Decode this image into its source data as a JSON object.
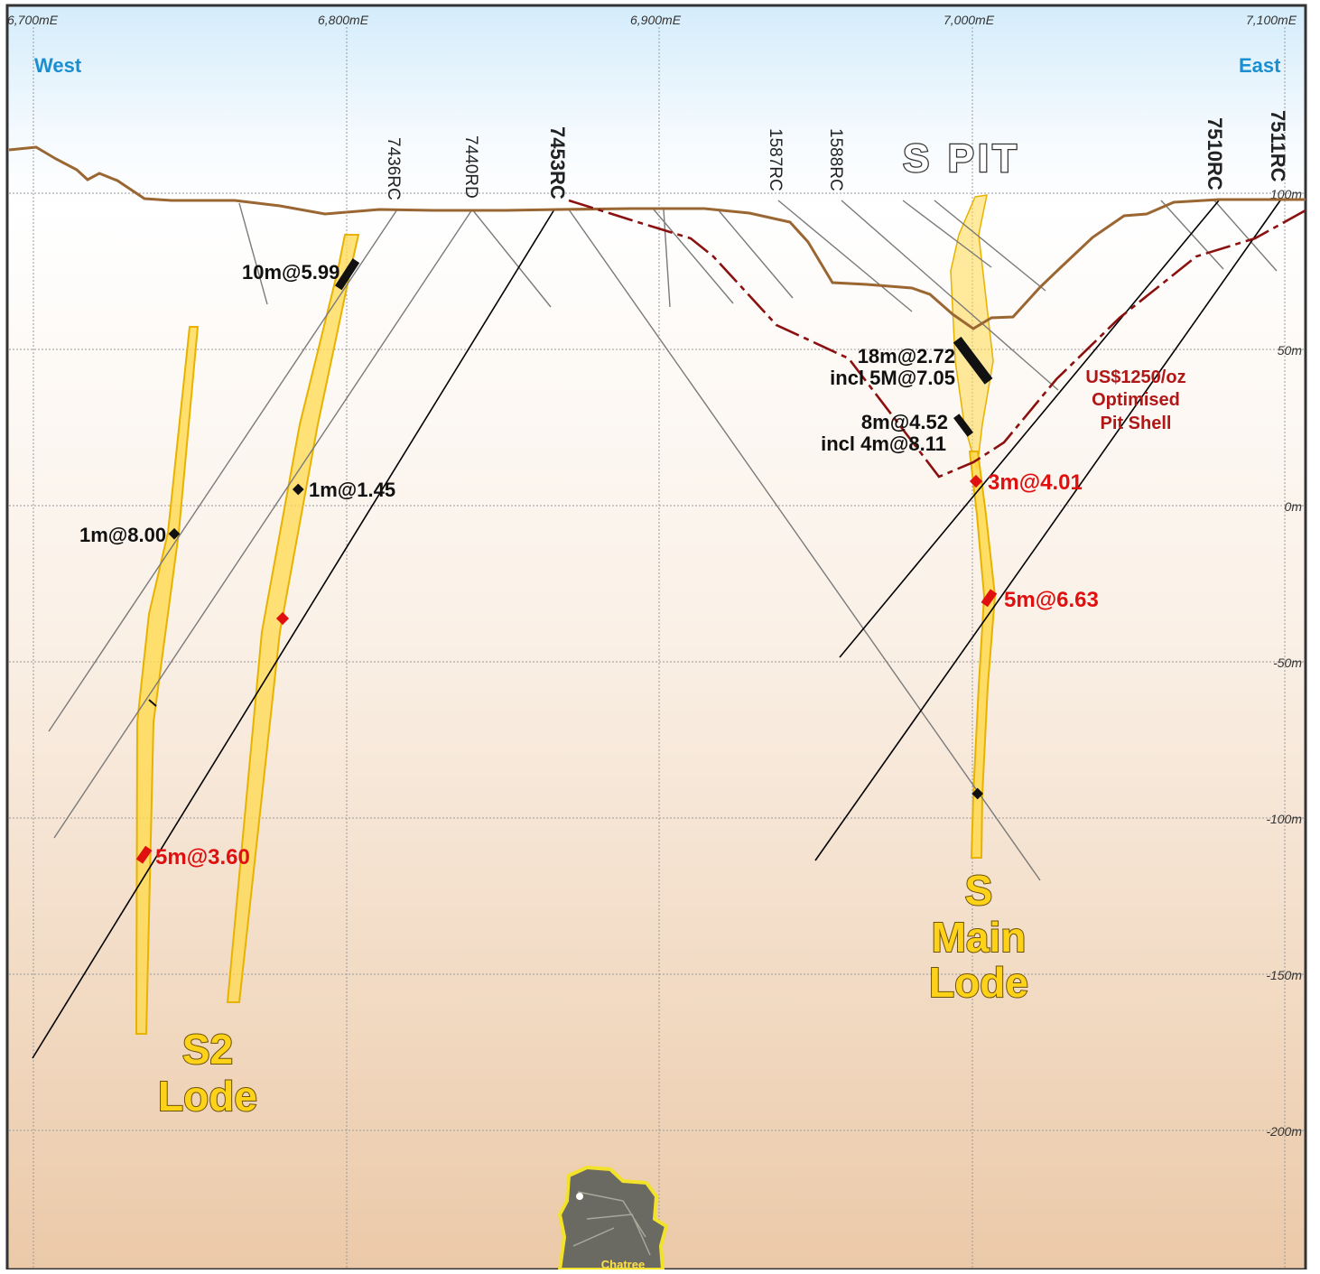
{
  "axes": {
    "eastings": [
      "6,700mE",
      "6,800mE",
      "6,900mE",
      "7,000mE",
      "7,100mE"
    ],
    "rls": [
      "100m",
      "50m",
      "0m",
      "-50m",
      "-100m",
      "-150m",
      "-200m"
    ]
  },
  "directions": {
    "west": "West",
    "east": "East"
  },
  "pit_label": "S PIT",
  "drillholes": [
    "7436RC",
    "7440RD",
    "7453RC",
    "1587RC",
    "1588RC",
    "7510RC",
    "7511RC"
  ],
  "intercepts": {
    "i1": "10m@5.99",
    "i2": "1m@1.45",
    "i3": "1m@8.00",
    "i4": "5m@3.60",
    "i5": "18m@2.72",
    "i6": "incl 5M@7.05",
    "i7": "8m@4.52",
    "i8": "incl 4m@8.11",
    "i9": "3m@4.01",
    "i10": "5m@6.63"
  },
  "pit_shell": {
    "line1": "US$1250/oz",
    "line2": "Optimised",
    "line3": "Pit Shell"
  },
  "lodes": {
    "s2": {
      "line1": "S2",
      "line2": "Lode"
    },
    "smain": {
      "line1": "S",
      "line2": "Main",
      "line3": "Lode"
    }
  },
  "location_map": {
    "label": "Chatree"
  },
  "colors": {
    "topo": "#9a6632",
    "pit_shell": "#8b1010",
    "lode_fill": "#ffd94d",
    "lode_edge": "#e8b200",
    "high_grade": "#e01010",
    "axis_label": "#1a8fd0"
  }
}
